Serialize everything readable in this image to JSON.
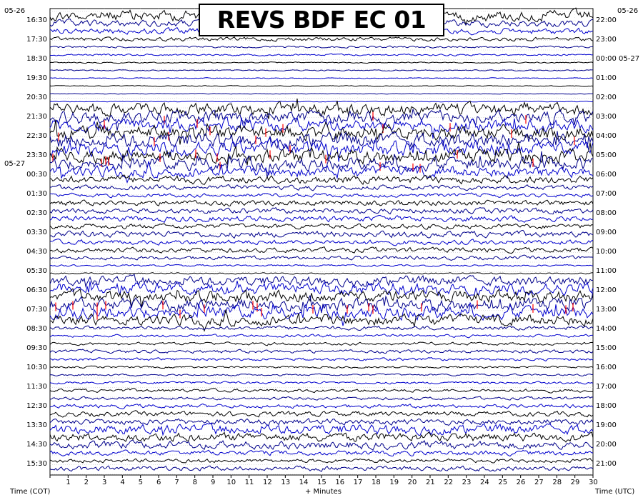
{
  "title": "REVS BDF EC 01",
  "chart_data": {
    "type": "line",
    "title": "REVS BDF EC 01",
    "xlabel": "+ Minutes",
    "ylabel_left": "Time (COT)",
    "ylabel_right": "Time (UTC)",
    "x_range": [
      0,
      30
    ],
    "x_ticks": [
      "1",
      "2",
      "3",
      "4",
      "5",
      "6",
      "7",
      "8",
      "9",
      "10",
      "11",
      "12",
      "13",
      "14",
      "15",
      "16",
      "17",
      "18",
      "19",
      "20",
      "21",
      "22",
      "23",
      "24",
      "25",
      "26",
      "27",
      "28",
      "29",
      "30"
    ],
    "left_dates": [
      "05-26",
      "05-27"
    ],
    "right_dates": [
      "05-26",
      "05-27"
    ],
    "left_times": [
      "16:30",
      "17:30",
      "18:30",
      "19:30",
      "20:30",
      "21:30",
      "22:30",
      "23:30",
      "00:30",
      "01:30",
      "02:30",
      "03:30",
      "04:30",
      "05:30",
      "06:30",
      "07:30",
      "08:30",
      "09:30",
      "10:30",
      "11:30",
      "12:30",
      "13:30",
      "14:30",
      "15:30"
    ],
    "right_times": [
      "22:00",
      "23:00",
      "00:00 05-27",
      "01:00",
      "02:00",
      "03:00",
      "04:00",
      "05:00",
      "06:00",
      "07:00",
      "08:00",
      "09:00",
      "10:00",
      "11:00",
      "12:00",
      "13:00",
      "14:00",
      "15:00",
      "16:00",
      "17:00",
      "18:00",
      "19:00",
      "20:00",
      "21:00"
    ],
    "trace_colors": [
      "#000000",
      "#00008b",
      "#0000cd"
    ],
    "clip_color": "#ff0000",
    "grid": true,
    "activity_levels": [
      2.2,
      1.4,
      1.2,
      0.8,
      0.4,
      0.4,
      0.25,
      0.25,
      0.2,
      0.2,
      0.15,
      0.15,
      2.4,
      2.6,
      2.6,
      2.8,
      3.0,
      3.0,
      2.8,
      2.6,
      2.2,
      1.6,
      1.0,
      0.8,
      1.1,
      1.1,
      1.2,
      1.0,
      1.3,
      1.0,
      1.0,
      0.8,
      0.4,
      0.3,
      2.0,
      2.4,
      2.4,
      2.6,
      2.6,
      2.2,
      0.8,
      0.6,
      0.6,
      0.7,
      0.6,
      0.4,
      0.4,
      0.5,
      0.7,
      0.6,
      0.8,
      1.0,
      1.2,
      2.0,
      1.8,
      1.6,
      1.0,
      0.8,
      1.0
    ]
  }
}
